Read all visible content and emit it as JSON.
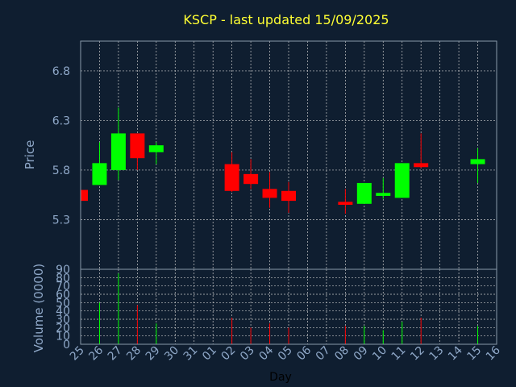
{
  "colors": {
    "background": "#0f1e30",
    "plot_border": "#8899aa",
    "grid": "#c8c8c8",
    "axis_text": "#8fa8c8",
    "title": "#ffff33",
    "up": "#00ff00",
    "down": "#ff0000",
    "day_label": "#000000"
  },
  "chart_data": {
    "type": "candlestick",
    "title": "KSCP - last updated 15/09/2025",
    "xlabel": "Day",
    "price_panel": {
      "ylabel": "Price",
      "ylim": [
        4.8,
        7.1
      ],
      "yticks": [
        6.8,
        6.3,
        5.8,
        5.3
      ],
      "grid": true
    },
    "volume_panel": {
      "ylabel": "Volume (0000)",
      "ylim": [
        0,
        90
      ],
      "yticks": [
        0,
        10,
        20,
        30,
        40,
        50,
        60,
        70,
        80,
        90
      ],
      "grid": true
    },
    "categories": [
      "25",
      "26",
      "27",
      "28",
      "29",
      "30",
      "31",
      "01",
      "02",
      "03",
      "04",
      "05",
      "06",
      "07",
      "08",
      "09",
      "10",
      "11",
      "12",
      "13",
      "14",
      "15",
      "16"
    ],
    "ohlc": [
      {
        "day": "25",
        "open": 5.6,
        "high": 5.6,
        "low": 5.48,
        "close": 5.49
      },
      {
        "day": "26",
        "open": 5.65,
        "high": 6.08,
        "low": 5.65,
        "close": 5.87
      },
      {
        "day": "27",
        "open": 5.8,
        "high": 6.43,
        "low": 5.7,
        "close": 6.17
      },
      {
        "day": "28",
        "open": 6.17,
        "high": 6.17,
        "low": 5.8,
        "close": 5.92
      },
      {
        "day": "29",
        "open": 5.98,
        "high": 6.08,
        "low": 5.86,
        "close": 6.05
      },
      {
        "day": "02",
        "open": 5.86,
        "high": 5.98,
        "low": 5.58,
        "close": 5.59
      },
      {
        "day": "03",
        "open": 5.76,
        "high": 5.91,
        "low": 5.61,
        "close": 5.66
      },
      {
        "day": "04",
        "open": 5.61,
        "high": 5.78,
        "low": 5.42,
        "close": 5.52
      },
      {
        "day": "05",
        "open": 5.59,
        "high": 5.68,
        "low": 5.37,
        "close": 5.49
      },
      {
        "day": "08",
        "open": 5.48,
        "high": 5.61,
        "low": 5.36,
        "close": 5.45
      },
      {
        "day": "09",
        "open": 5.46,
        "high": 5.67,
        "low": 5.46,
        "close": 5.67
      },
      {
        "day": "10",
        "open": 5.54,
        "high": 5.72,
        "low": 5.51,
        "close": 5.57
      },
      {
        "day": "11",
        "open": 5.52,
        "high": 5.87,
        "low": 5.52,
        "close": 5.87
      },
      {
        "day": "12",
        "open": 5.87,
        "high": 6.17,
        "low": 5.82,
        "close": 5.83
      },
      {
        "day": "15",
        "open": 5.86,
        "high": 6.02,
        "low": 5.67,
        "close": 5.91
      }
    ],
    "volume": [
      {
        "day": "25",
        "value": 0,
        "direction": "down"
      },
      {
        "day": "26",
        "value": 50,
        "direction": "up"
      },
      {
        "day": "27",
        "value": 85,
        "direction": "up"
      },
      {
        "day": "28",
        "value": 47,
        "direction": "down"
      },
      {
        "day": "29",
        "value": 25,
        "direction": "up"
      },
      {
        "day": "02",
        "value": 32,
        "direction": "down"
      },
      {
        "day": "03",
        "value": 20,
        "direction": "down"
      },
      {
        "day": "04",
        "value": 25,
        "direction": "down"
      },
      {
        "day": "05",
        "value": 20,
        "direction": "down"
      },
      {
        "day": "08",
        "value": 22,
        "direction": "down"
      },
      {
        "day": "09",
        "value": 22,
        "direction": "up"
      },
      {
        "day": "10",
        "value": 17,
        "direction": "up"
      },
      {
        "day": "11",
        "value": 27,
        "direction": "up"
      },
      {
        "day": "12",
        "value": 32,
        "direction": "down"
      },
      {
        "day": "15",
        "value": 22,
        "direction": "up"
      }
    ]
  }
}
